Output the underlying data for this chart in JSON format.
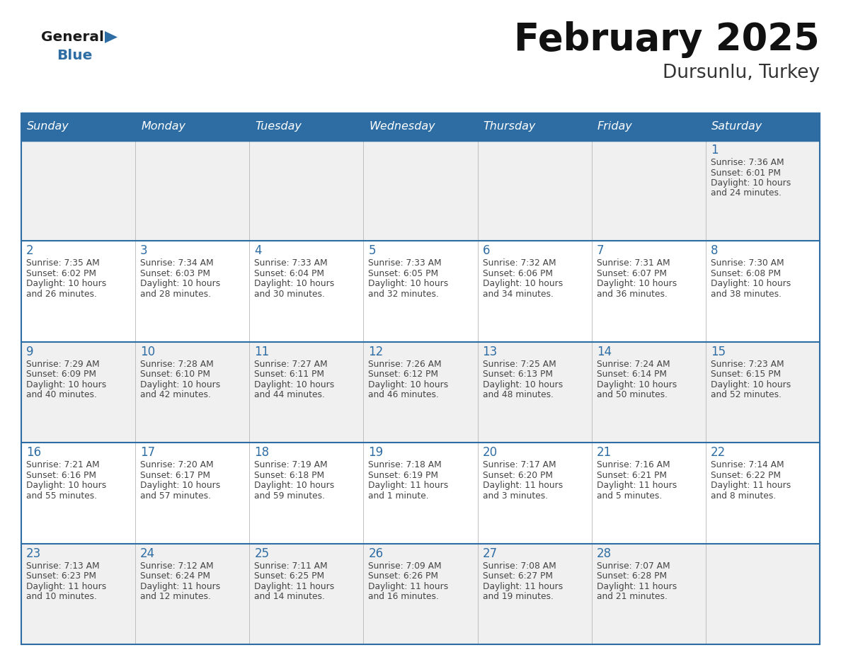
{
  "title": "February 2025",
  "subtitle": "Dursunlu, Turkey",
  "days_of_week": [
    "Sunday",
    "Monday",
    "Tuesday",
    "Wednesday",
    "Thursday",
    "Friday",
    "Saturday"
  ],
  "header_bg": "#2E6DA4",
  "header_text": "#FFFFFF",
  "cell_bg": "#FFFFFF",
  "cell_bg_alt": "#F0F0F0",
  "border_color": "#2E6DA4",
  "border_thin": "#AAAAAA",
  "day_num_color": "#2E6DA4",
  "text_color": "#444444",
  "title_color": "#111111",
  "subtitle_color": "#333333",
  "logo_general_color": "#1a1a1a",
  "logo_blue_color": "#2E6DA4",
  "logo_triangle_color": "#2E6DA4",
  "num_cols": 7,
  "num_rows": 5,
  "calendar_data": [
    {
      "day": 1,
      "col": 6,
      "row": 0,
      "sunrise": "7:36 AM",
      "sunset": "6:01 PM",
      "daylight_hours": 10,
      "daylight_minutes": 24
    },
    {
      "day": 2,
      "col": 0,
      "row": 1,
      "sunrise": "7:35 AM",
      "sunset": "6:02 PM",
      "daylight_hours": 10,
      "daylight_minutes": 26
    },
    {
      "day": 3,
      "col": 1,
      "row": 1,
      "sunrise": "7:34 AM",
      "sunset": "6:03 PM",
      "daylight_hours": 10,
      "daylight_minutes": 28
    },
    {
      "day": 4,
      "col": 2,
      "row": 1,
      "sunrise": "7:33 AM",
      "sunset": "6:04 PM",
      "daylight_hours": 10,
      "daylight_minutes": 30
    },
    {
      "day": 5,
      "col": 3,
      "row": 1,
      "sunrise": "7:33 AM",
      "sunset": "6:05 PM",
      "daylight_hours": 10,
      "daylight_minutes": 32
    },
    {
      "day": 6,
      "col": 4,
      "row": 1,
      "sunrise": "7:32 AM",
      "sunset": "6:06 PM",
      "daylight_hours": 10,
      "daylight_minutes": 34
    },
    {
      "day": 7,
      "col": 5,
      "row": 1,
      "sunrise": "7:31 AM",
      "sunset": "6:07 PM",
      "daylight_hours": 10,
      "daylight_minutes": 36
    },
    {
      "day": 8,
      "col": 6,
      "row": 1,
      "sunrise": "7:30 AM",
      "sunset": "6:08 PM",
      "daylight_hours": 10,
      "daylight_minutes": 38
    },
    {
      "day": 9,
      "col": 0,
      "row": 2,
      "sunrise": "7:29 AM",
      "sunset": "6:09 PM",
      "daylight_hours": 10,
      "daylight_minutes": 40
    },
    {
      "day": 10,
      "col": 1,
      "row": 2,
      "sunrise": "7:28 AM",
      "sunset": "6:10 PM",
      "daylight_hours": 10,
      "daylight_minutes": 42
    },
    {
      "day": 11,
      "col": 2,
      "row": 2,
      "sunrise": "7:27 AM",
      "sunset": "6:11 PM",
      "daylight_hours": 10,
      "daylight_minutes": 44
    },
    {
      "day": 12,
      "col": 3,
      "row": 2,
      "sunrise": "7:26 AM",
      "sunset": "6:12 PM",
      "daylight_hours": 10,
      "daylight_minutes": 46
    },
    {
      "day": 13,
      "col": 4,
      "row": 2,
      "sunrise": "7:25 AM",
      "sunset": "6:13 PM",
      "daylight_hours": 10,
      "daylight_minutes": 48
    },
    {
      "day": 14,
      "col": 5,
      "row": 2,
      "sunrise": "7:24 AM",
      "sunset": "6:14 PM",
      "daylight_hours": 10,
      "daylight_minutes": 50
    },
    {
      "day": 15,
      "col": 6,
      "row": 2,
      "sunrise": "7:23 AM",
      "sunset": "6:15 PM",
      "daylight_hours": 10,
      "daylight_minutes": 52
    },
    {
      "day": 16,
      "col": 0,
      "row": 3,
      "sunrise": "7:21 AM",
      "sunset": "6:16 PM",
      "daylight_hours": 10,
      "daylight_minutes": 55
    },
    {
      "day": 17,
      "col": 1,
      "row": 3,
      "sunrise": "7:20 AM",
      "sunset": "6:17 PM",
      "daylight_hours": 10,
      "daylight_minutes": 57
    },
    {
      "day": 18,
      "col": 2,
      "row": 3,
      "sunrise": "7:19 AM",
      "sunset": "6:18 PM",
      "daylight_hours": 10,
      "daylight_minutes": 59
    },
    {
      "day": 19,
      "col": 3,
      "row": 3,
      "sunrise": "7:18 AM",
      "sunset": "6:19 PM",
      "daylight_hours": 11,
      "daylight_minutes": 1
    },
    {
      "day": 20,
      "col": 4,
      "row": 3,
      "sunrise": "7:17 AM",
      "sunset": "6:20 PM",
      "daylight_hours": 11,
      "daylight_minutes": 3
    },
    {
      "day": 21,
      "col": 5,
      "row": 3,
      "sunrise": "7:16 AM",
      "sunset": "6:21 PM",
      "daylight_hours": 11,
      "daylight_minutes": 5
    },
    {
      "day": 22,
      "col": 6,
      "row": 3,
      "sunrise": "7:14 AM",
      "sunset": "6:22 PM",
      "daylight_hours": 11,
      "daylight_minutes": 8
    },
    {
      "day": 23,
      "col": 0,
      "row": 4,
      "sunrise": "7:13 AM",
      "sunset": "6:23 PM",
      "daylight_hours": 11,
      "daylight_minutes": 10
    },
    {
      "day": 24,
      "col": 1,
      "row": 4,
      "sunrise": "7:12 AM",
      "sunset": "6:24 PM",
      "daylight_hours": 11,
      "daylight_minutes": 12
    },
    {
      "day": 25,
      "col": 2,
      "row": 4,
      "sunrise": "7:11 AM",
      "sunset": "6:25 PM",
      "daylight_hours": 11,
      "daylight_minutes": 14
    },
    {
      "day": 26,
      "col": 3,
      "row": 4,
      "sunrise": "7:09 AM",
      "sunset": "6:26 PM",
      "daylight_hours": 11,
      "daylight_minutes": 16
    },
    {
      "day": 27,
      "col": 4,
      "row": 4,
      "sunrise": "7:08 AM",
      "sunset": "6:27 PM",
      "daylight_hours": 11,
      "daylight_minutes": 19
    },
    {
      "day": 28,
      "col": 5,
      "row": 4,
      "sunrise": "7:07 AM",
      "sunset": "6:28 PM",
      "daylight_hours": 11,
      "daylight_minutes": 21
    }
  ]
}
